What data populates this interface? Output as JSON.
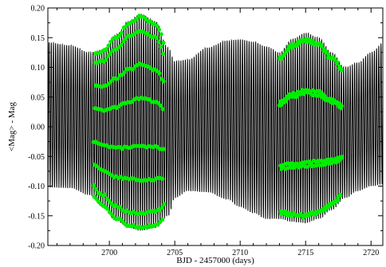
{
  "chart_data": {
    "type": "line",
    "xlabel": "BJD - 2457000 (days)",
    "ylabel": "<Mag> - Mag",
    "xlim": [
      2695.3,
      2720.9
    ],
    "ylim": [
      -0.2,
      0.2
    ],
    "x_ticks": [
      2700,
      2705,
      2710,
      2715,
      2720
    ],
    "x_tick_labels": [
      "2700",
      "2705",
      "2710",
      "2715",
      "2720"
    ],
    "y_ticks": [
      -0.2,
      -0.15,
      -0.1,
      -0.05,
      0.0,
      0.05,
      0.1,
      0.15,
      0.2
    ],
    "y_tick_labels": [
      "-0.20",
      "-0.15",
      "-0.10",
      "-0.05",
      "0.00",
      "0.05",
      "0.10",
      "0.15",
      "0.20"
    ],
    "grid": false,
    "legend": "none",
    "series": [
      {
        "style": "black line",
        "color": "#000000",
        "pulsation_period_days": 0.168,
        "envelope_x": [
          2695.3,
          2697.0,
          2698.5,
          2699.5,
          2700.5,
          2701.5,
          2702.4,
          2703.5,
          2704.5,
          2705.0,
          2706.0,
          2707.5,
          2709.0,
          2710.0,
          2711.0,
          2712.0,
          2713.0,
          2714.0,
          2715.0,
          2716.0,
          2717.0,
          2718.0,
          2719.0,
          2720.0,
          2720.9
        ],
        "envelope_max": [
          0.142,
          0.137,
          0.125,
          0.13,
          0.155,
          0.178,
          0.19,
          0.178,
          0.133,
          0.11,
          0.113,
          0.133,
          0.145,
          0.147,
          0.143,
          0.135,
          0.125,
          0.148,
          0.158,
          0.15,
          0.125,
          0.1,
          0.108,
          0.125,
          0.14
        ],
        "envelope_min": [
          -0.102,
          -0.103,
          -0.115,
          -0.135,
          -0.158,
          -0.17,
          -0.175,
          -0.17,
          -0.15,
          -0.12,
          -0.108,
          -0.11,
          -0.122,
          -0.135,
          -0.145,
          -0.155,
          -0.155,
          -0.16,
          -0.162,
          -0.155,
          -0.14,
          -0.12,
          -0.108,
          -0.1,
          -0.097
        ]
      },
      {
        "style": "green circles",
        "color": "#00ee00",
        "segments_x": [
          [
            2698.8,
            2704.2
          ],
          [
            2713.0,
            2717.8
          ]
        ]
      }
    ]
  }
}
